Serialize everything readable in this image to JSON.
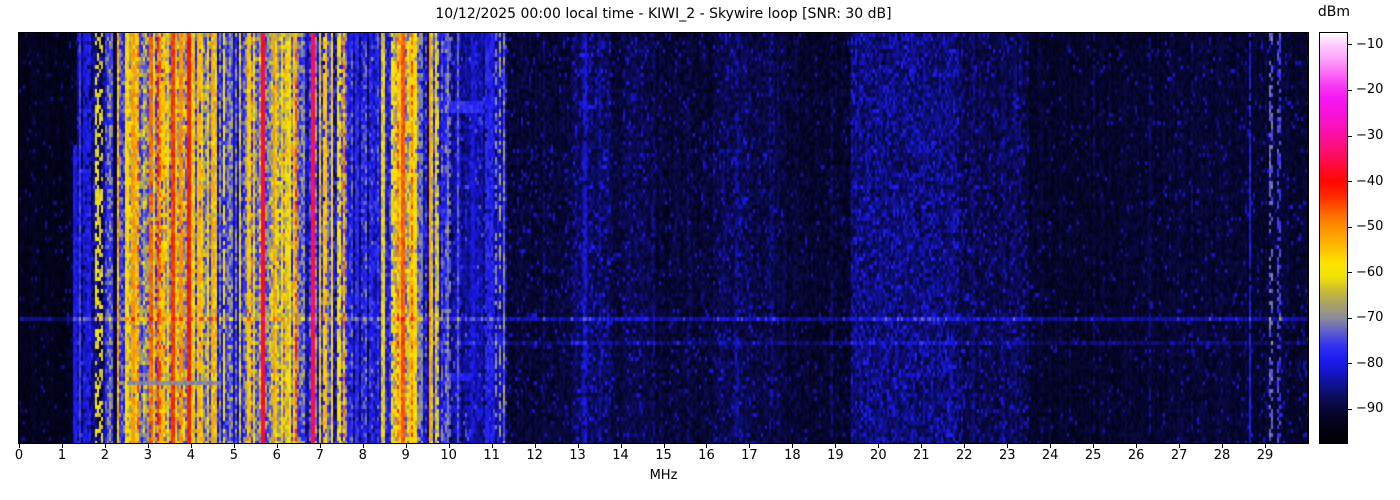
{
  "colors": {
    "background": "#ffffff",
    "text": "#000000"
  },
  "chart_data": {
    "type": "heatmap",
    "title": "10/12/2025 00:00 local time - KIWI_2 - Skywire loop [SNR: 30 dB]",
    "datetime_local": "10/12/2025 00:00",
    "station": "KIWI_2",
    "antenna": "Skywire loop",
    "snr_db": 30,
    "xlabel": "MHz",
    "x_range": [
      0,
      30
    ],
    "x_ticks": [
      0,
      1,
      2,
      3,
      4,
      5,
      6,
      7,
      8,
      9,
      10,
      11,
      12,
      13,
      14,
      15,
      16,
      17,
      18,
      19,
      20,
      21,
      22,
      23,
      24,
      25,
      26,
      27,
      28,
      29
    ],
    "y_ticks": [],
    "grid": false,
    "colorbar": {
      "label": "dBm",
      "vmin": -97.5,
      "vmax": -7.5,
      "ticks": [
        -10,
        -20,
        -30,
        -40,
        -50,
        -60,
        -70,
        -80,
        -90
      ],
      "colormap": [
        [
          -97.5,
          "#000000"
        ],
        [
          -94,
          "#020216"
        ],
        [
          -91,
          "#06062e"
        ],
        [
          -88,
          "#0b0b54"
        ],
        [
          -85,
          "#10108c"
        ],
        [
          -82,
          "#1414c8"
        ],
        [
          -79,
          "#1d1df2"
        ],
        [
          -76,
          "#3333f0"
        ],
        [
          -73,
          "#5f5fc8"
        ],
        [
          -70,
          "#8c8c9c"
        ],
        [
          -67,
          "#a8a263"
        ],
        [
          -64,
          "#ccbc32"
        ],
        [
          -61,
          "#f0e005"
        ],
        [
          -58,
          "#ffe400"
        ],
        [
          -55,
          "#ffc000"
        ],
        [
          -52,
          "#ffa200"
        ],
        [
          -49,
          "#ff8400"
        ],
        [
          -46,
          "#ff5500"
        ],
        [
          -43,
          "#ff2400"
        ],
        [
          -40,
          "#ff0800"
        ],
        [
          -37,
          "#ff0a33"
        ],
        [
          -34,
          "#fd0d68"
        ],
        [
          -31,
          "#fb0f92"
        ],
        [
          -28,
          "#f911bc"
        ],
        [
          -25,
          "#f713dc"
        ],
        [
          -22,
          "#f616f2"
        ],
        [
          -19,
          "#f83af4"
        ],
        [
          -16,
          "#fa70f6"
        ],
        [
          -13,
          "#fda6fa"
        ],
        [
          -10,
          "#fecdfc"
        ],
        [
          -7.5,
          "#ffffff"
        ]
      ]
    },
    "seed": 20251012,
    "noise_segments": [
      {
        "f0": 0.0,
        "f1": 1.33,
        "base": -93,
        "colvar": 1,
        "cellvar": 2,
        "spec_p": 0.05,
        "spec_lvl": -86
      },
      {
        "f0": 1.33,
        "f1": 2.0,
        "base": -86,
        "colvar": 4,
        "cellvar": 5,
        "spec_p": 0.04,
        "spec_lvl": -78,
        "mix": [
          [
            0.1,
            -78
          ]
        ]
      },
      {
        "f0": 2.0,
        "f1": 2.55,
        "base": -75,
        "colvar": 4,
        "cellvar": 7,
        "mix": [
          [
            0.22,
            -62
          ],
          [
            0.06,
            -55
          ],
          [
            0.1,
            -85
          ]
        ]
      },
      {
        "f0": 2.55,
        "f1": 3.2,
        "base": -70,
        "colvar": 4,
        "cellvar": 8,
        "mix": [
          [
            0.3,
            -60
          ],
          [
            0.14,
            -52
          ],
          [
            0.06,
            -46
          ],
          [
            0.08,
            -82
          ]
        ]
      },
      {
        "f0": 3.2,
        "f1": 4.1,
        "base": -68,
        "colvar": 4,
        "cellvar": 8,
        "mix": [
          [
            0.3,
            -58
          ],
          [
            0.18,
            -51
          ],
          [
            0.1,
            -45
          ],
          [
            0.06,
            -80
          ]
        ]
      },
      {
        "f0": 4.1,
        "f1": 4.7,
        "base": -70,
        "colvar": 4,
        "cellvar": 8,
        "mix": [
          [
            0.34,
            -59
          ],
          [
            0.1,
            -52
          ],
          [
            0.03,
            -46
          ],
          [
            0.08,
            -80
          ]
        ]
      },
      {
        "f0": 4.7,
        "f1": 5.3,
        "base": -75,
        "colvar": 5,
        "cellvar": 7,
        "mix": [
          [
            0.16,
            -61
          ],
          [
            0.04,
            -54
          ],
          [
            0.1,
            -84
          ]
        ]
      },
      {
        "f0": 5.3,
        "f1": 6.45,
        "base": -70,
        "colvar": 4,
        "cellvar": 8,
        "mix": [
          [
            0.28,
            -59
          ],
          [
            0.12,
            -52
          ],
          [
            0.05,
            -46
          ],
          [
            0.06,
            -82
          ]
        ]
      },
      {
        "f0": 6.45,
        "f1": 7.05,
        "base": -74,
        "colvar": 4,
        "cellvar": 7,
        "mix": [
          [
            0.18,
            -61
          ],
          [
            0.05,
            -53
          ],
          [
            0.08,
            -83
          ]
        ]
      },
      {
        "f0": 7.05,
        "f1": 7.65,
        "base": -72,
        "colvar": 4,
        "cellvar": 8,
        "mix": [
          [
            0.26,
            -60
          ],
          [
            0.07,
            -53
          ],
          [
            0.06,
            -82
          ]
        ]
      },
      {
        "f0": 7.65,
        "f1": 8.75,
        "base": -78,
        "colvar": 4,
        "cellvar": 6,
        "mix": [
          [
            0.1,
            -62
          ],
          [
            0.03,
            -55
          ],
          [
            0.1,
            -86
          ]
        ]
      },
      {
        "f0": 8.75,
        "f1": 9.25,
        "base": -67,
        "colvar": 4,
        "cellvar": 8,
        "mix": [
          [
            0.36,
            -58
          ],
          [
            0.12,
            -51
          ],
          [
            0.04,
            -46
          ]
        ]
      },
      {
        "f0": 9.25,
        "f1": 9.95,
        "base": -76,
        "colvar": 4,
        "cellvar": 7,
        "mix": [
          [
            0.14,
            -62
          ],
          [
            0.04,
            -55
          ],
          [
            0.08,
            -85
          ]
        ]
      },
      {
        "f0": 9.95,
        "f1": 11.35,
        "base": -84,
        "colvar": 3,
        "cellvar": 4,
        "spec_p": 0.05,
        "spec_lvl": -76,
        "mix": [
          [
            0.06,
            -76
          ],
          [
            0.02,
            -70
          ]
        ]
      },
      {
        "f0": 11.35,
        "f1": 12.55,
        "base": -90.5,
        "colvar": 1,
        "cellvar": 3,
        "spec_p": 0.07,
        "spec_lvl": -83
      },
      {
        "f0": 12.55,
        "f1": 12.9,
        "base": -90,
        "colvar": 1,
        "cellvar": 3,
        "spec_p": 0.08,
        "spec_lvl": -83
      },
      {
        "f0": 12.9,
        "f1": 13.75,
        "base": -88,
        "colvar": 1,
        "cellvar": 3,
        "spec_p": 0.15,
        "spec_lvl": -81
      },
      {
        "f0": 13.75,
        "f1": 14.05,
        "base": -90,
        "colvar": 1,
        "cellvar": 3,
        "spec_p": 0.06,
        "spec_lvl": -83
      },
      {
        "f0": 14.05,
        "f1": 14.65,
        "base": -89,
        "colvar": 1,
        "cellvar": 3,
        "spec_p": 0.1,
        "spec_lvl": -82
      },
      {
        "f0": 14.65,
        "f1": 16.15,
        "base": -90.5,
        "colvar": 1,
        "cellvar": 3,
        "spec_p": 0.05,
        "spec_lvl": -83
      },
      {
        "f0": 16.15,
        "f1": 17.05,
        "base": -88.5,
        "colvar": 1,
        "cellvar": 3,
        "spec_p": 0.12,
        "spec_lvl": -82
      },
      {
        "f0": 17.05,
        "f1": 17.85,
        "base": -89.5,
        "colvar": 1,
        "cellvar": 3,
        "spec_p": 0.08,
        "spec_lvl": -83
      },
      {
        "f0": 17.85,
        "f1": 19.35,
        "base": -91,
        "colvar": 1,
        "cellvar": 3,
        "spec_p": 0.04,
        "spec_lvl": -84
      },
      {
        "f0": 19.35,
        "f1": 21.85,
        "base": -87,
        "colvar": 1,
        "cellvar": 3.5,
        "spec_p": 0.22,
        "spec_lvl": -81
      },
      {
        "f0": 21.85,
        "f1": 23.5,
        "base": -89,
        "colvar": 1,
        "cellvar": 3,
        "spec_p": 0.12,
        "spec_lvl": -82
      },
      {
        "f0": 23.5,
        "f1": 26.5,
        "base": -91.5,
        "colvar": 1,
        "cellvar": 2.5,
        "spec_p": 0.04,
        "spec_lvl": -84
      },
      {
        "f0": 26.5,
        "f1": 30.0,
        "base": -91,
        "colvar": 1,
        "cellvar": 2.5,
        "spec_p": 0.06,
        "spec_lvl": -83
      }
    ],
    "carriers_format": [
      "f_mhz",
      "width_px",
      "level_dbm",
      "dash_gap_prob",
      "y_start_frac"
    ],
    "carriers": [
      [
        1.3,
        2,
        -80,
        0,
        0.27
      ],
      [
        1.4,
        2,
        -76,
        0,
        0
      ],
      [
        1.52,
        2,
        -80,
        0.35,
        0
      ],
      [
        1.62,
        2,
        -79,
        0.3,
        0
      ],
      [
        1.8,
        3,
        -61,
        0.45,
        0
      ],
      [
        1.89,
        2,
        -63,
        0.5,
        0
      ],
      [
        2.2,
        3,
        -89,
        0,
        0
      ],
      [
        2.5,
        2,
        -57,
        0.2,
        0
      ],
      [
        2.66,
        3,
        -51,
        0.1,
        0
      ],
      [
        3.05,
        3,
        -47,
        0.1,
        0
      ],
      [
        3.33,
        2,
        -55,
        0.2,
        0
      ],
      [
        3.56,
        3,
        -44,
        0,
        0
      ],
      [
        3.76,
        2,
        -50,
        0.1,
        0
      ],
      [
        3.93,
        3,
        -42,
        0,
        0
      ],
      [
        4.17,
        2,
        -54,
        0.15,
        0
      ],
      [
        4.47,
        2,
        -52,
        0.1,
        0
      ],
      [
        4.77,
        2,
        -59,
        0.2,
        0
      ],
      [
        5.0,
        2,
        -83,
        0,
        0
      ],
      [
        5.35,
        2,
        -55,
        0.15,
        0
      ],
      [
        5.67,
        3,
        -37,
        0,
        0
      ],
      [
        5.92,
        2,
        -52,
        0.1,
        0
      ],
      [
        6.1,
        2,
        -56,
        0.2,
        0
      ],
      [
        6.3,
        2,
        -59,
        0.25,
        0
      ],
      [
        6.81,
        3,
        -35,
        0,
        0
      ],
      [
        7.12,
        2,
        -55,
        0.15,
        0
      ],
      [
        7.28,
        2,
        -57,
        0.2,
        0
      ],
      [
        7.44,
        2,
        -59,
        0.3,
        0
      ],
      [
        7.85,
        2,
        -77,
        0.3,
        0
      ],
      [
        8.2,
        2,
        -79,
        0.3,
        0
      ],
      [
        8.67,
        2,
        -58,
        0.25,
        0
      ],
      [
        8.94,
        3,
        -46,
        0,
        0
      ],
      [
        9.1,
        2,
        -55,
        0.15,
        0
      ],
      [
        9.2,
        2,
        -58,
        0.2,
        0
      ],
      [
        9.35,
        2,
        -70,
        0.4,
        0
      ],
      [
        9.56,
        2,
        -52,
        0,
        0
      ],
      [
        9.75,
        2,
        -62,
        0.3,
        0
      ],
      [
        10.0,
        2,
        -73,
        0.45,
        0
      ],
      [
        10.25,
        2,
        -80,
        0.3,
        0
      ],
      [
        10.55,
        2,
        -80,
        0.25,
        0
      ],
      [
        10.87,
        2,
        -78,
        0.2,
        0
      ],
      [
        10.97,
        2,
        -78,
        0.25,
        0
      ],
      [
        11.08,
        2,
        -71,
        0.5,
        0
      ],
      [
        11.18,
        2,
        -68,
        0.5,
        0
      ],
      [
        11.28,
        2,
        -74,
        0.45,
        0
      ],
      [
        12.2,
        2,
        -86,
        0.5,
        0
      ],
      [
        13.15,
        2,
        -81,
        0.2,
        0
      ],
      [
        13.5,
        2,
        -84,
        0.35,
        0
      ],
      [
        14.75,
        2,
        -86,
        0.5,
        0
      ],
      [
        15.55,
        2,
        -86,
        0.5,
        0
      ],
      [
        16.7,
        2,
        -84,
        0.4,
        0
      ],
      [
        17.48,
        2,
        -85,
        0.5,
        0
      ],
      [
        18.9,
        2,
        -86,
        0.45,
        0
      ],
      [
        20.05,
        2,
        -85,
        0.45,
        0
      ],
      [
        21.06,
        2,
        -84,
        0.4,
        0
      ],
      [
        22.2,
        2,
        -86,
        0.5,
        0
      ],
      [
        23.2,
        2,
        -85,
        0.45,
        0
      ],
      [
        25.0,
        2,
        -87,
        0.5,
        0
      ],
      [
        26.3,
        2,
        -86,
        0.5,
        0
      ],
      [
        27.3,
        2,
        -87,
        0.5,
        0
      ],
      [
        28.65,
        2,
        -80,
        0.08,
        0
      ],
      [
        29.15,
        3,
        -73,
        0.5,
        0
      ],
      [
        29.32,
        3,
        -75,
        0.5,
        0
      ]
    ],
    "time_events": [
      {
        "y_frac": 0.685,
        "f0": 0,
        "f1": 30,
        "boost": 7
      },
      {
        "y_frac": 0.752,
        "f0": 8.5,
        "f1": 30,
        "boost": 4
      }
    ],
    "blobs": [
      {
        "f0": 9.9,
        "f1": 10.7,
        "y_frac": 0.168,
        "rows": 3,
        "level": -77,
        "flat": false
      },
      {
        "f0": 9.9,
        "f1": 10.5,
        "y_frac": 0.83,
        "rows": 2,
        "level": -79,
        "flat": false
      },
      {
        "f0": 9.55,
        "f1": 10.15,
        "y_frac": 0.9,
        "rows": 2,
        "level": -80,
        "flat": false
      },
      {
        "f0": 2.55,
        "f1": 4.65,
        "y_frac": 0.845,
        "rows": 1,
        "level": -70,
        "flat": true
      }
    ]
  }
}
